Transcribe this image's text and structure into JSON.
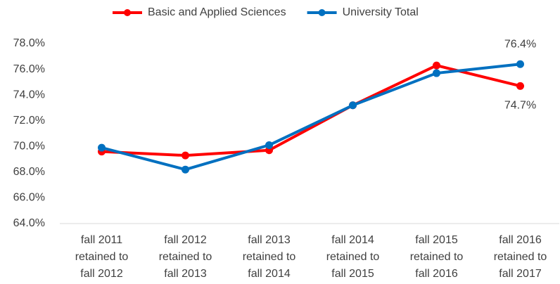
{
  "chart_data": {
    "type": "line",
    "categories": [
      [
        "fall 2011",
        "retained to",
        "fall 2012"
      ],
      [
        "fall 2012",
        "retained to",
        "fall 2013"
      ],
      [
        "fall 2013",
        "retained to",
        "fall 2014"
      ],
      [
        "fall 2014",
        "retained to",
        "fall 2015"
      ],
      [
        "fall 2015",
        "retained to",
        "fall 2016"
      ],
      [
        "fall 2016",
        "retained to",
        "fall 2017"
      ]
    ],
    "series": [
      {
        "name": "Basic and Applied Sciences",
        "color": "#ff0000",
        "values": [
          69.6,
          69.3,
          69.7,
          73.2,
          76.3,
          74.7
        ],
        "value_labels": [
          null,
          null,
          null,
          null,
          null,
          "74.7%"
        ]
      },
      {
        "name": "University Total",
        "color": "#0070c0",
        "values": [
          69.9,
          68.2,
          70.1,
          73.2,
          75.7,
          76.4
        ],
        "value_labels": [
          null,
          null,
          null,
          null,
          null,
          "76.4%"
        ]
      }
    ],
    "ylim": [
      64,
      78
    ],
    "yticks": [
      {
        "value": 64,
        "label": "64.0%"
      },
      {
        "value": 66,
        "label": "66.0%"
      },
      {
        "value": 68,
        "label": "68.0%"
      },
      {
        "value": 70,
        "label": "70.0%"
      },
      {
        "value": 72,
        "label": "72.0%"
      },
      {
        "value": 74,
        "label": "74.0%"
      },
      {
        "value": 76,
        "label": "76.0%"
      },
      {
        "value": 78,
        "label": "78.0%"
      }
    ],
    "grid": false,
    "legend": "top"
  }
}
